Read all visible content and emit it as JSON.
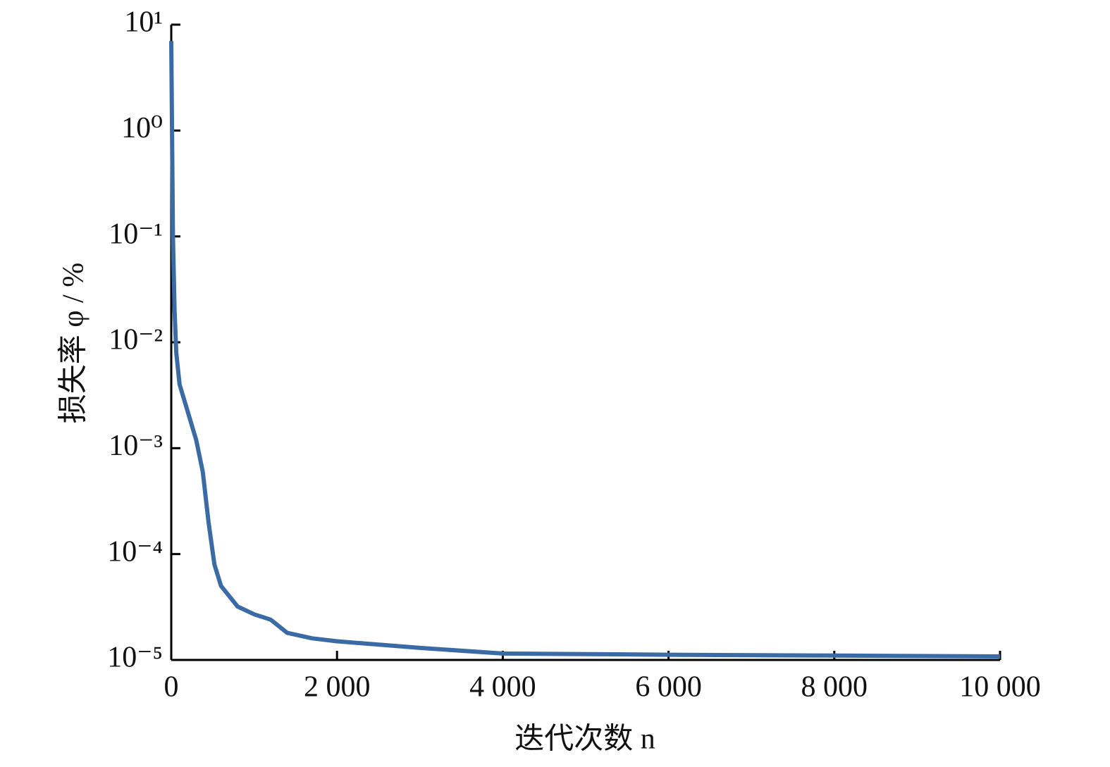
{
  "chart_data": {
    "type": "line",
    "x_label": "迭代次数 n",
    "y_label": "损失率 φ / %",
    "log_y": true,
    "xlim": [
      0,
      10000
    ],
    "ylim": [
      1e-05,
      10
    ],
    "xticks": [
      0,
      {
        "value": 2000,
        "label": "2 000"
      },
      {
        "value": 4000,
        "label": "4 000"
      },
      {
        "value": 6000,
        "label": "6 000"
      },
      {
        "value": 8000,
        "label": "8 000"
      },
      {
        "value": 10000,
        "label": "10 000"
      }
    ],
    "yticks": [
      {
        "value": 1e-05,
        "label": "10⁻⁵"
      },
      {
        "value": 0.0001,
        "label": "10⁻⁴"
      },
      {
        "value": 0.001,
        "label": "10⁻³"
      },
      {
        "value": 0.01,
        "label": "10⁻²"
      },
      {
        "value": 0.1,
        "label": "10⁻¹"
      },
      {
        "value": 1,
        "label": "10⁰"
      },
      {
        "value": 10,
        "label": "10¹"
      }
    ],
    "series": [
      {
        "color": "#3b6ba5",
        "x": [
          0,
          20,
          40,
          60,
          100,
          200,
          300,
          380,
          450,
          520,
          600,
          800,
          1000,
          1200,
          1400,
          1700,
          2000,
          3000,
          4000,
          6000,
          8000,
          10000
        ],
        "values": [
          7,
          0.1,
          0.02,
          0.008,
          0.004,
          0.0022,
          0.0012,
          0.0006,
          0.0002,
          8e-05,
          5e-05,
          3.2e-05,
          2.7e-05,
          2.4e-05,
          1.8e-05,
          1.6e-05,
          1.5e-05,
          1.3e-05,
          1.15e-05,
          1.12e-05,
          1.1e-05,
          1.08e-05
        ]
      }
    ]
  }
}
